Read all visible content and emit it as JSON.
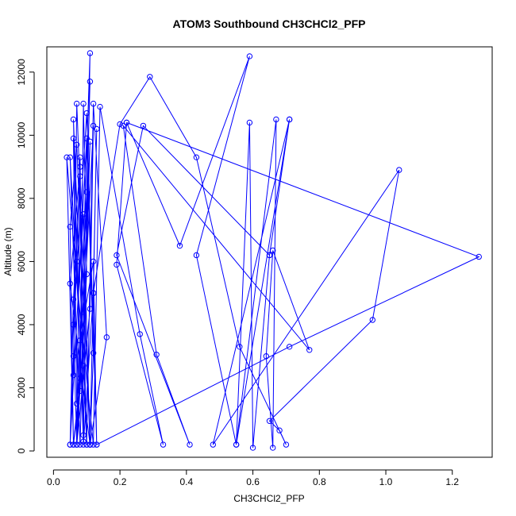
{
  "chart_data": {
    "type": "line",
    "title": "ATOM3 Southbound CH3CHCl2_PFP",
    "xlabel": "CH3CHCl2_PFP",
    "ylabel": "Altitude (m)",
    "xlim": [
      -0.02,
      1.32
    ],
    "ylim": [
      -200,
      12800
    ],
    "xticks": [
      0.0,
      0.2,
      0.4,
      0.6,
      0.8,
      1.0,
      1.2
    ],
    "xtick_labels": [
      "0.0",
      "0.2",
      "0.4",
      "0.6",
      "0.8",
      "1.0",
      "1.2"
    ],
    "yticks": [
      0,
      2000,
      4000,
      6000,
      8000,
      10000,
      12000
    ],
    "ytick_labels": [
      "0",
      "2000",
      "4000",
      "6000",
      "8000",
      "10000",
      "12000"
    ],
    "grid": false,
    "legend": "none",
    "series": [
      {
        "color": "#0000ff",
        "marker": "open-circle",
        "points": [
          [
            0.05,
            200
          ],
          [
            0.06,
            3000
          ],
          [
            0.08,
            9300
          ],
          [
            0.09,
            500
          ],
          [
            0.07,
            6000
          ],
          [
            0.06,
            10500
          ],
          [
            0.1,
            200
          ],
          [
            0.09,
            4400
          ],
          [
            0.07,
            9700
          ],
          [
            0.05,
            7100
          ],
          [
            0.06,
            200
          ],
          [
            0.08,
            2300
          ],
          [
            0.09,
            11000
          ],
          [
            0.1,
            5600
          ],
          [
            0.07,
            200
          ],
          [
            0.11,
            12600
          ],
          [
            0.09,
            300
          ],
          [
            0.08,
            8700
          ],
          [
            0.06,
            4800
          ],
          [
            0.05,
            200
          ],
          [
            0.1,
            9900
          ],
          [
            0.12,
            3100
          ],
          [
            0.11,
            200
          ],
          [
            0.07,
            11000
          ],
          [
            0.06,
            2400
          ],
          [
            0.09,
            7500
          ],
          [
            0.11,
            200
          ],
          [
            0.13,
            10200
          ],
          [
            0.12,
            5000
          ],
          [
            0.09,
            200
          ],
          [
            0.06,
            9900
          ],
          [
            0.07,
            1500
          ],
          [
            0.1,
            8200
          ],
          [
            0.11,
            11700
          ],
          [
            0.08,
            200
          ],
          [
            0.05,
            9300
          ],
          [
            0.08,
            3500
          ],
          [
            0.12,
            6000
          ],
          [
            0.13,
            200
          ],
          [
            0.1,
            10700
          ],
          [
            0.06,
            4000
          ],
          [
            0.07,
            200
          ],
          [
            0.11,
            9800
          ],
          [
            0.09,
            2700
          ],
          [
            0.1,
            200
          ],
          [
            0.12,
            11000
          ],
          [
            0.16,
            3600
          ],
          [
            0.11,
            200
          ],
          [
            0.05,
            5300
          ],
          [
            0.08,
            9000
          ],
          [
            0.07,
            200
          ],
          [
            0.11,
            4500
          ],
          [
            0.12,
            10300
          ],
          [
            0.08,
            1900
          ],
          [
            0.06,
            200
          ],
          [
            0.04,
            9300
          ],
          [
            0.07,
            5400
          ],
          [
            0.12,
            200
          ],
          [
            0.14,
            10900
          ],
          [
            0.26,
            3700
          ],
          [
            0.33,
            200
          ],
          [
            0.19,
            5900
          ],
          [
            0.22,
            10400
          ],
          [
            0.38,
            6500
          ],
          [
            0.59,
            12500
          ],
          [
            0.43,
            6200
          ],
          [
            0.55,
            200
          ],
          [
            0.59,
            10400
          ],
          [
            0.6,
            100
          ],
          [
            0.65,
            6200
          ],
          [
            0.71,
            10500
          ],
          [
            0.55,
            200
          ],
          [
            0.67,
            10500
          ],
          [
            0.66,
            100
          ],
          [
            0.64,
            3000
          ],
          [
            0.66,
            6350
          ],
          [
            0.77,
            3200
          ],
          [
            0.21,
            10300
          ],
          [
            0.31,
            3050
          ],
          [
            0.41,
            200
          ],
          [
            0.19,
            6200
          ],
          [
            0.27,
            10300
          ],
          [
            0.65,
            6200
          ],
          [
            0.71,
            10500
          ],
          [
            0.48,
            200
          ],
          [
            1.04,
            8900
          ],
          [
            0.96,
            4150
          ],
          [
            0.65,
            950
          ],
          [
            0.68,
            650
          ],
          [
            0.7,
            200
          ],
          [
            0.56,
            3300
          ],
          [
            0.43,
            9300
          ],
          [
            0.29,
            11850
          ],
          [
            0.2,
            10350
          ],
          [
            0.12,
            5000
          ],
          [
            0.13,
            200
          ],
          [
            0.71,
            3300
          ],
          [
            1.28,
            6150
          ],
          [
            0.22,
            10400
          ]
        ]
      }
    ]
  }
}
